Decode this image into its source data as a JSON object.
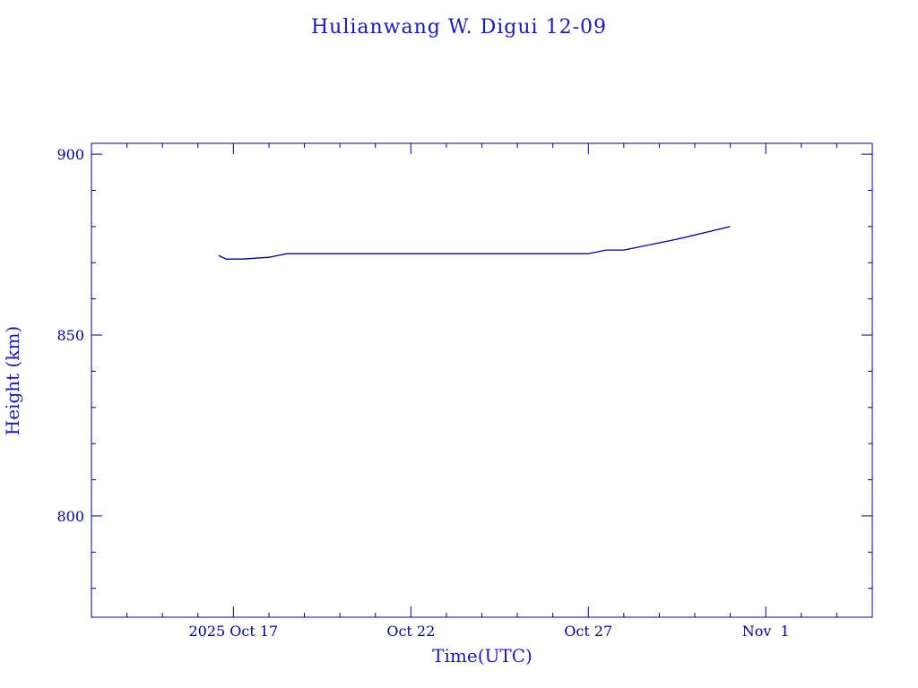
{
  "chart_data": {
    "type": "line",
    "title": "Hulianwang W. Digui 12-09",
    "xlabel": "Time(UTC)",
    "ylabel": "Height (km)",
    "x_tick_labels": [
      "2025 Oct 17",
      "Oct 22",
      "Oct 27",
      "Nov  1"
    ],
    "y_tick_labels": [
      "800",
      "850",
      "900"
    ],
    "xlim": [
      "2025-10-13",
      "2025-11-04"
    ],
    "ylim": [
      772,
      903
    ],
    "grid": false,
    "color": "#00008b",
    "series": [
      {
        "x": [
          "2025-10-16 14:00",
          "2025-10-16 19:00",
          "2025-10-17 00:00",
          "2025-10-17 06:00",
          "2025-10-18 00:00",
          "2025-10-18 12:00",
          "2025-10-19 12:00",
          "2025-10-22 00:00",
          "2025-10-27 00:00",
          "2025-10-27 12:00",
          "2025-10-28 00:00",
          "2025-10-29 12:00",
          "2025-10-31 00:00"
        ],
        "y": [
          872,
          871,
          871,
          871,
          871.5,
          872.5,
          872.5,
          872.5,
          872.5,
          873.5,
          873.5,
          876.5,
          880
        ]
      }
    ]
  }
}
